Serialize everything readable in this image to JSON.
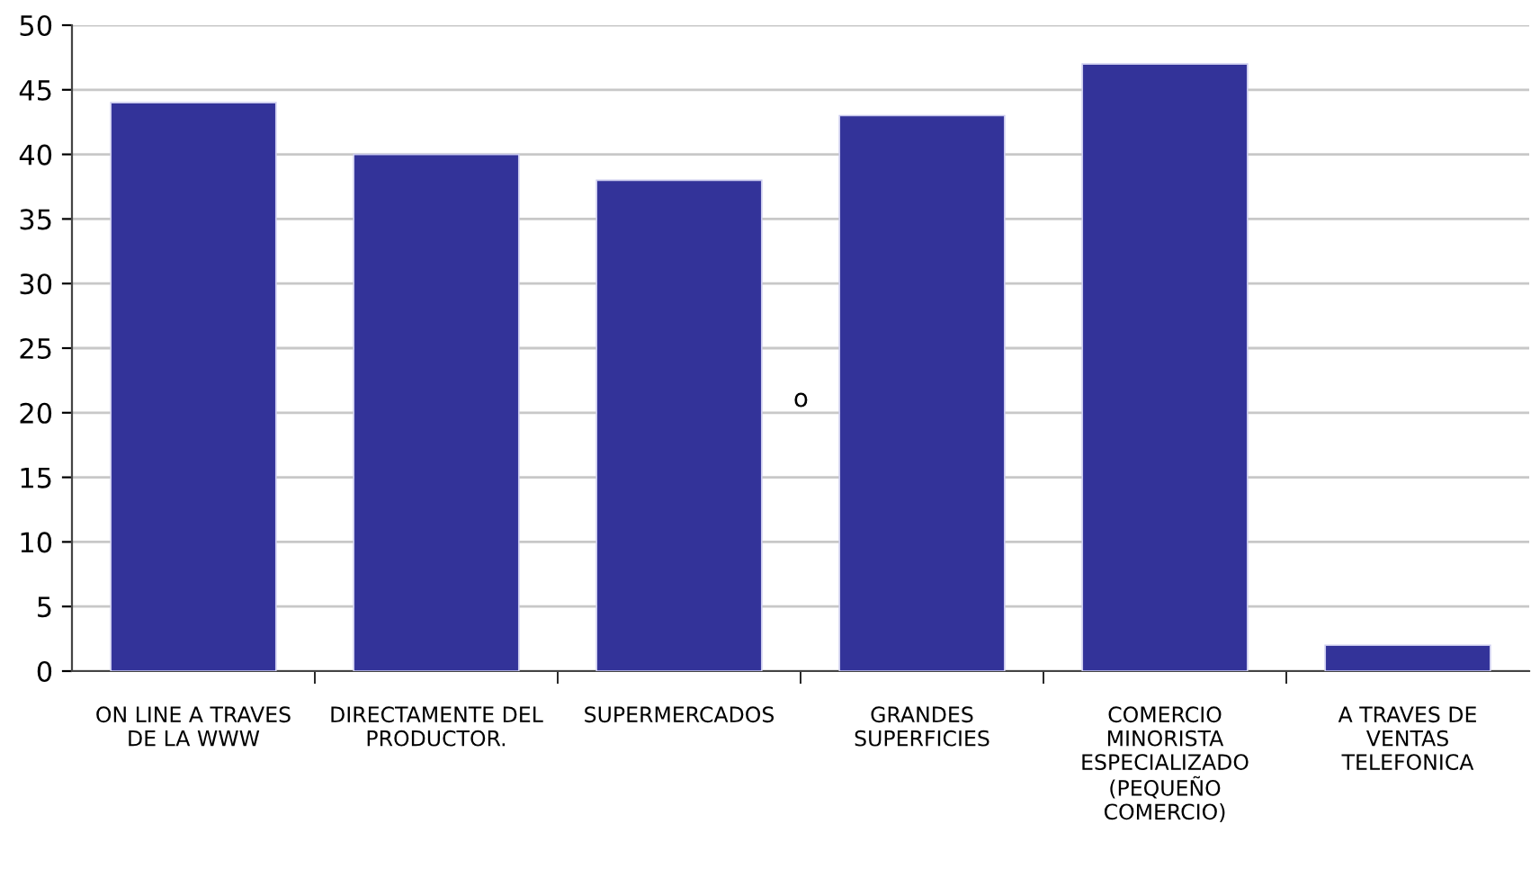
{
  "chart_data": {
    "type": "bar",
    "categories": [
      "ON LINE A TRAVES\nDE LA WWW",
      "DIRECTAMENTE DEL\nPRODUCTOR.",
      "SUPERMERCADOS",
      "GRANDES\nSUPERFICIES",
      "COMERCIO\nMINORISTA\nESPECIALIZADO\n(PEQUEÑO\nCOMERCIO)",
      "A TRAVES DE\nVENTAS\nTELEFONICA"
    ],
    "values": [
      44,
      40,
      38,
      43,
      47,
      2
    ],
    "color": "#333399",
    "ylim": [
      0,
      50
    ],
    "yticks": [
      0,
      5,
      10,
      15,
      20,
      25,
      30,
      35,
      40,
      45,
      50
    ],
    "grid": "y",
    "annotations": [
      "o"
    ]
  }
}
